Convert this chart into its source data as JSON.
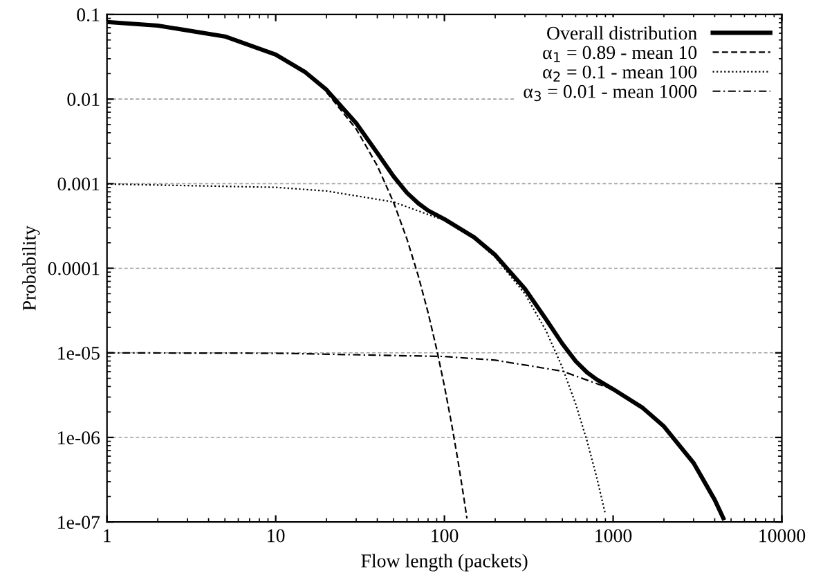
{
  "chart_data": {
    "type": "line",
    "xlabel": "Flow length (packets)",
    "ylabel": "Probability",
    "log": "xy",
    "grid": "y",
    "legend": "top right",
    "xlim": [
      1,
      10000
    ],
    "xticks": [
      1,
      10,
      100,
      1000,
      10000
    ],
    "ylim": [
      1e-07,
      0.1
    ],
    "yticks": [
      {
        "value": 1e-07,
        "label": "1e-07"
      },
      {
        "value": 1e-06,
        "label": "1e-06"
      },
      {
        "value": 1e-05,
        "label": "1e-05"
      },
      {
        "value": 0.0001,
        "label": "0.0001"
      },
      {
        "value": 0.001,
        "label": "0.001"
      },
      {
        "value": 0.01,
        "label": "0.01"
      },
      {
        "value": 0.1,
        "label": "0.1"
      }
    ],
    "series": [
      {
        "name": "Overall distribution",
        "color": "#000000",
        "line_style": "solid",
        "x": [
          1,
          2,
          5,
          10,
          15,
          20,
          30,
          40,
          50,
          60,
          70,
          80,
          100,
          150,
          200,
          300,
          400,
          500,
          600,
          700,
          800,
          1000,
          1500,
          2000,
          3000,
          4000,
          4500
        ],
        "values": [
          0.0815,
          0.0739,
          0.055,
          0.0336,
          0.02072,
          0.01288,
          0.005181,
          0.00231,
          0.001216,
          0.000779,
          0.000586,
          0.000482,
          0.000381,
          0.000232,
          0.0001435,
          5.72e-05,
          2.5e-05,
          1.28e-05,
          7.97e-06,
          5.88e-06,
          4.83e-06,
          3.72e-06,
          2.23e-06,
          1.35e-06,
          4.98e-07,
          1.83e-07,
          1.11e-07
        ]
      },
      {
        "name": "α$_{1}$ = 0.89 - mean 10",
        "color": "#000000",
        "line_style": "dashed",
        "x": [
          20,
          30,
          40,
          50,
          60,
          70,
          80,
          90,
          100,
          110,
          120,
          130,
          136
        ],
        "values": [
          0.01205,
          0.004431,
          0.00163,
          0.0005997,
          0.0002206,
          8.12e-05,
          2.99e-05,
          1.1e-05,
          4.04e-06,
          1.49e-06,
          5.47e-07,
          2.01e-07,
          1.1e-07
        ]
      },
      {
        "name": "α$_{2}$ = 0.1 - mean 100",
        "color": "#000000",
        "line_style": "dotted",
        "x": [
          1,
          10,
          20,
          50,
          100,
          150,
          200,
          300,
          400,
          500,
          600,
          700,
          800,
          900
        ],
        "values": [
          0.00099,
          0.000905,
          0.000819,
          0.000607,
          0.000368,
          0.000223,
          0.0001353,
          4.98e-05,
          1.83e-05,
          6.74e-06,
          2.48e-06,
          9.12e-07,
          3.35e-07,
          1.23e-07
        ]
      },
      {
        "name": "α$_{3}$ = 0.01 - mean 1000",
        "color": "#000000",
        "line_style": "dashdot",
        "x": [
          1,
          10,
          100,
          200,
          500,
          1000
        ],
        "values": [
          9.99e-06,
          9.9e-06,
          9.05e-06,
          8.19e-06,
          6.07e-06,
          3.68e-06
        ]
      }
    ]
  }
}
